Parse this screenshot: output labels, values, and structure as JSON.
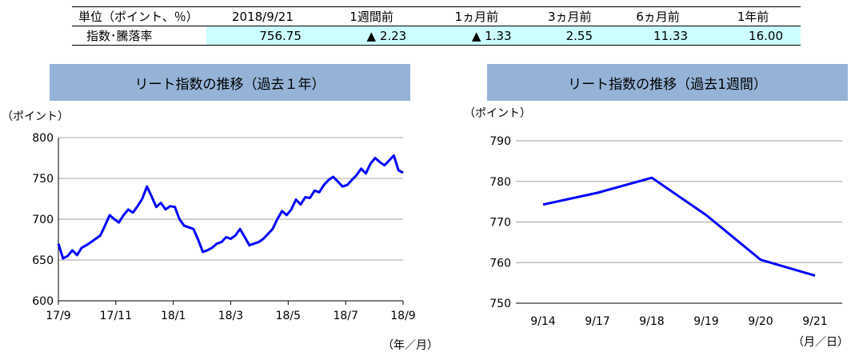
{
  "summary": {
    "header": [
      "単位（ポイント、％）",
      "2018/9/21",
      "1週間前",
      "1ヵ月前",
      "3ヵ月前",
      "6ヵ月前",
      "1年前"
    ],
    "row_label": "指数･騰落率",
    "values": [
      "756.75",
      "▲ 2.23",
      "▲ 1.33",
      "2.55",
      "11.33",
      "16.00"
    ]
  },
  "colors": {
    "line": "#0000ff",
    "title_bar": "#95b3d7",
    "highlight_cell": "#ccffff",
    "grid": "#a0a0a0"
  },
  "chart_data": [
    {
      "type": "line",
      "title": "リート指数の推移（過去１年）",
      "ylabel": "（ポイント）",
      "xlabel": "（年／月）",
      "ylim": [
        600,
        800
      ],
      "yticks": [
        600,
        650,
        700,
        750,
        800
      ],
      "xticks": [
        "17/9",
        "17/11",
        "18/1",
        "18/3",
        "18/5",
        "18/7",
        "18/9"
      ],
      "grid": true,
      "series": [
        {
          "values": [
            670,
            652,
            655,
            662,
            656,
            665,
            668,
            672,
            676,
            680,
            692,
            705,
            700,
            696,
            705,
            712,
            708,
            716,
            725,
            740,
            728,
            715,
            720,
            712,
            716,
            715,
            700,
            692,
            690,
            688,
            675,
            660,
            662,
            665,
            670,
            672,
            678,
            676,
            680,
            688,
            678,
            668,
            670,
            672,
            676,
            682,
            688,
            700,
            710,
            705,
            712,
            724,
            718,
            727,
            726,
            735,
            733,
            742,
            748,
            752,
            746,
            740,
            742,
            748,
            754,
            762,
            756,
            768,
            775,
            770,
            766,
            772,
            778,
            760,
            757
          ]
        }
      ]
    },
    {
      "type": "line",
      "title": "リート指数の推移（過去1週間）",
      "ylabel": "（ポイント）",
      "xlabel": "（月／日）",
      "ylim": [
        750,
        790
      ],
      "yticks": [
        750,
        760,
        770,
        780,
        790
      ],
      "categories": [
        "9/14",
        "9/17",
        "9/18",
        "9/19",
        "9/20",
        "9/21"
      ],
      "grid": true,
      "series": [
        {
          "values": [
            774.3,
            777.2,
            780.9,
            771.7,
            760.7,
            756.8
          ]
        }
      ]
    }
  ]
}
